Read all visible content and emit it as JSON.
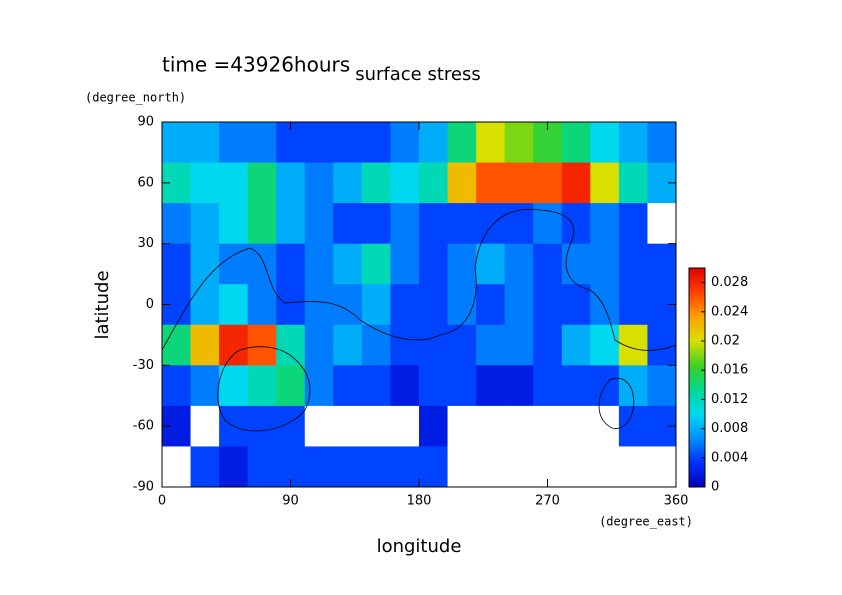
{
  "chart_data": {
    "type": "contour",
    "title": "surface stress",
    "subtitle": "time =43926hours",
    "y_label": "latitude",
    "y_unit": "(degree_north)",
    "x_label": "longitude",
    "x_unit": "(degree_east)",
    "xlim": [
      0,
      360
    ],
    "ylim": [
      -90,
      90
    ],
    "xticks": [
      0,
      90,
      180,
      270,
      360
    ],
    "yticks": [
      -90,
      -60,
      -30,
      0,
      30,
      60,
      90
    ],
    "zlim": [
      0,
      0.03
    ],
    "zticks": [
      0,
      0.004,
      0.008,
      0.012,
      0.016,
      0.02,
      0.024,
      0.028
    ],
    "colormap": [
      "#0000b4",
      "#0030ff",
      "#0090ff",
      "#00d8f0",
      "#00d890",
      "#40d020",
      "#d8e000",
      "#ffa000",
      "#ff4000",
      "#e00000"
    ],
    "x": [
      10,
      30,
      50,
      70,
      90,
      110,
      130,
      150,
      170,
      190,
      210,
      230,
      250,
      270,
      290,
      310,
      330,
      350
    ],
    "y": [
      80,
      60,
      40,
      20,
      0,
      -20,
      -40,
      -60,
      -80
    ],
    "z": [
      [
        0.008,
        0.008,
        0.006,
        0.006,
        0.004,
        0.004,
        0.004,
        0.004,
        0.006,
        0.008,
        0.014,
        0.02,
        0.018,
        0.016,
        0.014,
        0.01,
        0.008,
        0.006
      ],
      [
        0.012,
        0.01,
        0.01,
        0.014,
        0.008,
        0.006,
        0.008,
        0.012,
        0.01,
        0.012,
        0.022,
        0.026,
        0.026,
        0.026,
        0.028,
        0.02,
        0.012,
        0.008
      ],
      [
        0.006,
        0.008,
        0.01,
        0.014,
        0.008,
        0.006,
        0.004,
        0.004,
        0.006,
        0.004,
        0.004,
        0.004,
        0.004,
        0.006,
        0.004,
        0.006,
        0.004,
        0
      ],
      [
        0.004,
        0.008,
        0.006,
        0.006,
        0.004,
        0.006,
        0.008,
        0.012,
        0.006,
        0.004,
        0.006,
        0.008,
        0.006,
        0.004,
        0.006,
        0.006,
        0.004,
        0.004
      ],
      [
        0.004,
        0.008,
        0.01,
        0.006,
        0.004,
        0.006,
        0.006,
        0.008,
        0.004,
        0.004,
        0.006,
        0.004,
        0.006,
        0.004,
        0.004,
        0.006,
        0.004,
        0.004
      ],
      [
        0.014,
        0.022,
        0.028,
        0.026,
        0.012,
        0.006,
        0.008,
        0.006,
        0.004,
        0.004,
        0.004,
        0.006,
        0.006,
        0.004,
        0.008,
        0.01,
        0.02,
        0.004
      ],
      [
        0.004,
        0.006,
        0.01,
        0.012,
        0.014,
        0.006,
        0.004,
        0.004,
        0.002,
        0.004,
        0.004,
        0.002,
        0.002,
        0.004,
        0.004,
        0.004,
        0.008,
        0.006
      ],
      [
        0.002,
        0,
        0.004,
        0.004,
        0.004,
        0,
        0,
        0,
        0,
        0.002,
        0,
        0,
        0,
        0,
        0,
        0,
        0.004,
        0.004
      ],
      [
        0,
        0.004,
        0.002,
        0.004,
        0.004,
        0.004,
        0.004,
        0.004,
        0.004,
        0.004,
        0,
        0,
        0,
        0,
        0,
        0,
        0,
        0
      ]
    ]
  }
}
